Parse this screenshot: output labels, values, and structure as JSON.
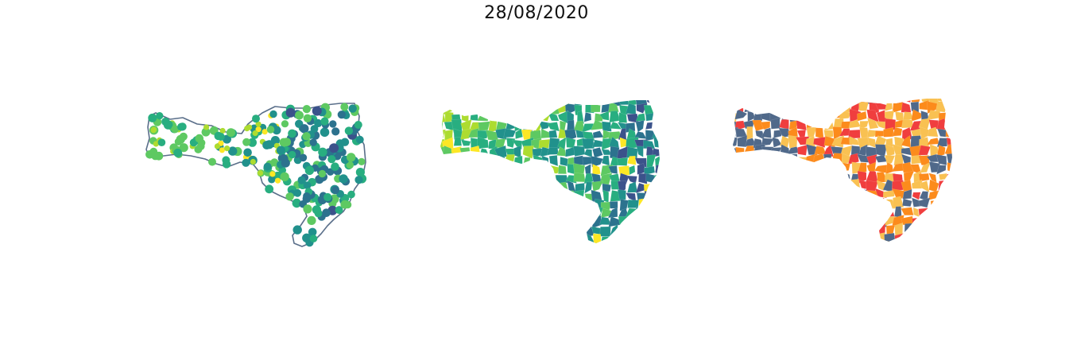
{
  "figure": {
    "title": "28/08/2020"
  },
  "panels": [
    {
      "name": "point-map",
      "kind": "proportional points over state outline"
    },
    {
      "name": "choropleth-continuous",
      "kind": "municipality choropleth, continuous scale"
    },
    {
      "name": "choropleth-categorical",
      "kind": "municipality choropleth, 4 categories"
    }
  ],
  "colors": {
    "outline": "#5a6f8a",
    "continuous_scale": [
      "#3b528b",
      "#2c728e",
      "#21918c",
      "#28ae80",
      "#5ec962",
      "#addc30",
      "#fde725"
    ],
    "categorical": [
      "#50698a",
      "#f9c152",
      "#fc8b1c",
      "#f03e3e"
    ]
  }
}
